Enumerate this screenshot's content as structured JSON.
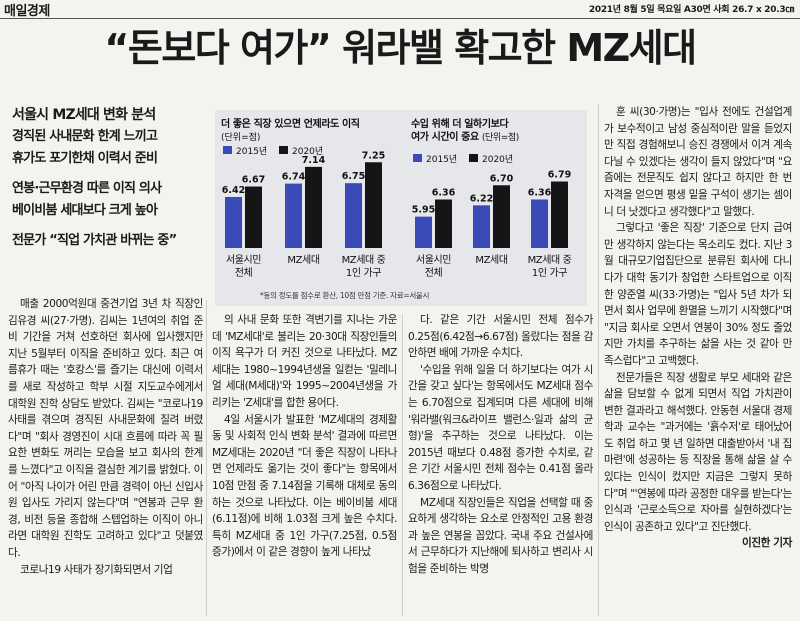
{
  "masthead": {
    "paper_name": "매일경제",
    "dateline": "2021년 8월 5일 목요일 A30면 사회 26.7 x 20.3㎝"
  },
  "headline": "“돈보다 여가” 워라밸 확고한 MZ세대",
  "subheads": [
    "서울시 MZ세대 변화 분석",
    "경직된 사내문화 한계 느끼고",
    "휴가도 포기한채 이력서 준비",
    "연봉·근무환경 따른 이직 의사",
    "베이비붐 세대보다 크게 높아",
    "전문가 “직업 가치관 바뀌는 중”"
  ],
  "chart_data": [
    {
      "type": "bar",
      "title": "더 좋은 직장 있으면 언제라도 이직",
      "unit": "(단위=점)",
      "categories": [
        "서울시민 전체",
        "MZ세대",
        "MZ세대 중 1인 가구"
      ],
      "series": [
        {
          "name": "2015년",
          "values": [
            6.42,
            6.74,
            6.75
          ]
        },
        {
          "name": "2020년",
          "values": [
            6.67,
            7.14,
            7.25
          ]
        }
      ],
      "value_labels": {
        "2015년": [
          "6.42",
          "6.74",
          "6.75"
        ],
        "2020년": [
          "6.67",
          "7.14",
          "7.25"
        ]
      }
    },
    {
      "type": "bar",
      "title": "수입 위해 더 일하기보다 여가 시간이 중요",
      "unit": "(단위=점)",
      "categories": [
        "서울시민 전체",
        "MZ세대",
        "MZ세대 중 1인 가구"
      ],
      "series": [
        {
          "name": "2015년",
          "values": [
            5.95,
            6.22,
            6.36
          ]
        },
        {
          "name": "2020년",
          "values": [
            6.36,
            6.7,
            6.79
          ]
        }
      ],
      "value_labels": {
        "2015년": [
          "5.95",
          "6.22",
          "6.36"
        ],
        "2020년": [
          "6.36",
          "6.70",
          "6.79"
        ]
      }
    }
  ],
  "chart_colors": {
    "2015년": "#3a4bb8",
    "2020년": "#151515"
  },
  "chart_footnote": "*동의 정도를 점수로 환산, 10점 만점 기준. 자료=서울시",
  "body": {
    "col1": [
      "매출 2000억원대 중견기업 3년 차 직장인 김유경 씨(27·가명). 김씨는 1년여의 취업 준비 기간을 거쳐 선호하던 회사에 입사했지만 지난 5월부터 이직을 준비하고 있다. 최근 여름휴가 때는 '호캉스'를 즐기는 대신에 이력서를 새로 작성하고 학부 시절 지도교수에게서 대학원 진학 상담도 받았다. 김씨는 \"코로나19 사태를 겪으며 경직된 사내문화에 질려 버렸다\"며 \"회사 경영진이 시대 흐름에 따라 꼭 필요한 변화도 꺼리는 모습을 보고 회사의 한계를 느꼈다\"고 이직을 결심한 계기를 밝혔다. 이어 \"아직 나이가 어린 만큼 경력이 아닌 신입사원 입사도 가리지 않는다\"며 \"연봉과 근무 환경, 비전 등을 종합해 스텝업하는 이직이 아니라면 대학원 진학도 고려하고 있다\"고 덧붙였다.",
      "코로나19 사태가 장기화되면서 기업"
    ],
    "col2": [
      "의 사내 문화 또한 격변기를 지나는 가운데 'MZ세대'로 불리는 20·30대 직장인들의 이직 욕구가 더 커진 것으로 나타났다. MZ세대는 1980~1994년생을 일컫는 '밀레니얼 세대(M세대)'와 1995~2004년생을 가리키는 'Z세대'를 합한 용어다.",
      "4일 서울시가 발표한 'MZ세대의 경제활동 및 사회적 인식 변화 분석' 결과에 따르면 MZ세대는 2020년 \"더 좋은 직장이 나타나면 언제라도 옮기는 것이 좋다\"는 항목에서 10점 만점 중 7.14점을 기록해 대체로 동의하는 것으로 나타났다. 이는 베이비붐 세대(6.11점)에 비해 1.03점 크게 높은 수치다. 특히 MZ세대 중 1인 가구(7.25점, 0.5점 증가)에서 이 같은 경향이 높게 나타났"
    ],
    "col3": [
      "다. 같은 기간 서울시민 전체 점수가 0.25점(6.42점→6.67점) 올랐다는 점을 감안하면 배에 가까운 수치다.",
      "'수입을 위해 일을 더 하기보다는 여가 시간을 갖고 싶다'는 항목에서도 MZ세대 점수는 6.70점으로 집계되며 다른 세대에 비해 '워라밸(워크&라이프 밸런스·일과 삶의 균형)'을 추구하는 것으로 나타났다. 이는 2015년 때보다 0.48점 증가한 수치로, 같은 기간 서울시민 전체 점수는 0.41점 올라 6.36점으로 나타났다.",
      "MZ세대 직장인들은 직업을 선택할 때 중요하게 생각하는 요소로 안정적인 고용 환경과 높은 연봉을 꼽았다. 국내 주요 건설사에서 근무하다가 지난해에 퇴사하고 변리사 시험을 준비하는 박명"
    ],
    "col4": [
      "훈 씨(30·가명)는 \"입사 전에도 건설업계가 보수적이고 남성 중심적이란 말을 듣었지만 직접 경험해보니 승진 경쟁에서 이겨 계속 다닐 수 있겠다는 생각이 들지 않았다\"며 \"요즘에는 전문직도 쉽지 않다고 하지만 한 번 자격을 얻으면 평생 밑을 구석이 생기는 셈이니 더 낫겠다고 생각했다\"고 말했다.",
      "그렇다고 '좋은 직장' 기준으로 단지 급여만 생각하지 않는다는 목소리도 컸다. 지난 3월 대규모기업집단으로 분류된 회사에 다니다가 대학 동기가 창업한 스타트업으로 이직한 양준열 씨(33·가명)는 \"입사 5년 차가 되면서 회사 업무에 환멸을 느끼기 시작했다\"며 \"지금 회사로 오면서 연봉이 30% 정도 줄었지만 가치를 추구하는 삶을 사는 것 같아 만족스럽다\"고 고백했다.",
      "전문가들은 직장 생활로 부모 세대와 같은 삶을 담보할 수 없게 되면서 직업 가치관이 변한 결과라고 해석했다. 안동현 서울대 경제학과 교수는 \"과거에는 '흙수저'로 태어났어도 취업 하고 몇 년 일하면 대출받아서 '내 집 마련'에 성공하는 등 직장을 통해 삶을 살 수 있다는 인식이 컸지만 지금은 그렇지 못하다\"며 \"'연봉에 따라 공정한 대우를 받는다'는 인식과 '근로소득으로 자아를 실현하겠다'는 인식이 공존하고 있다\"고 진단했다."
    ],
    "byline": "이진한 기자"
  }
}
